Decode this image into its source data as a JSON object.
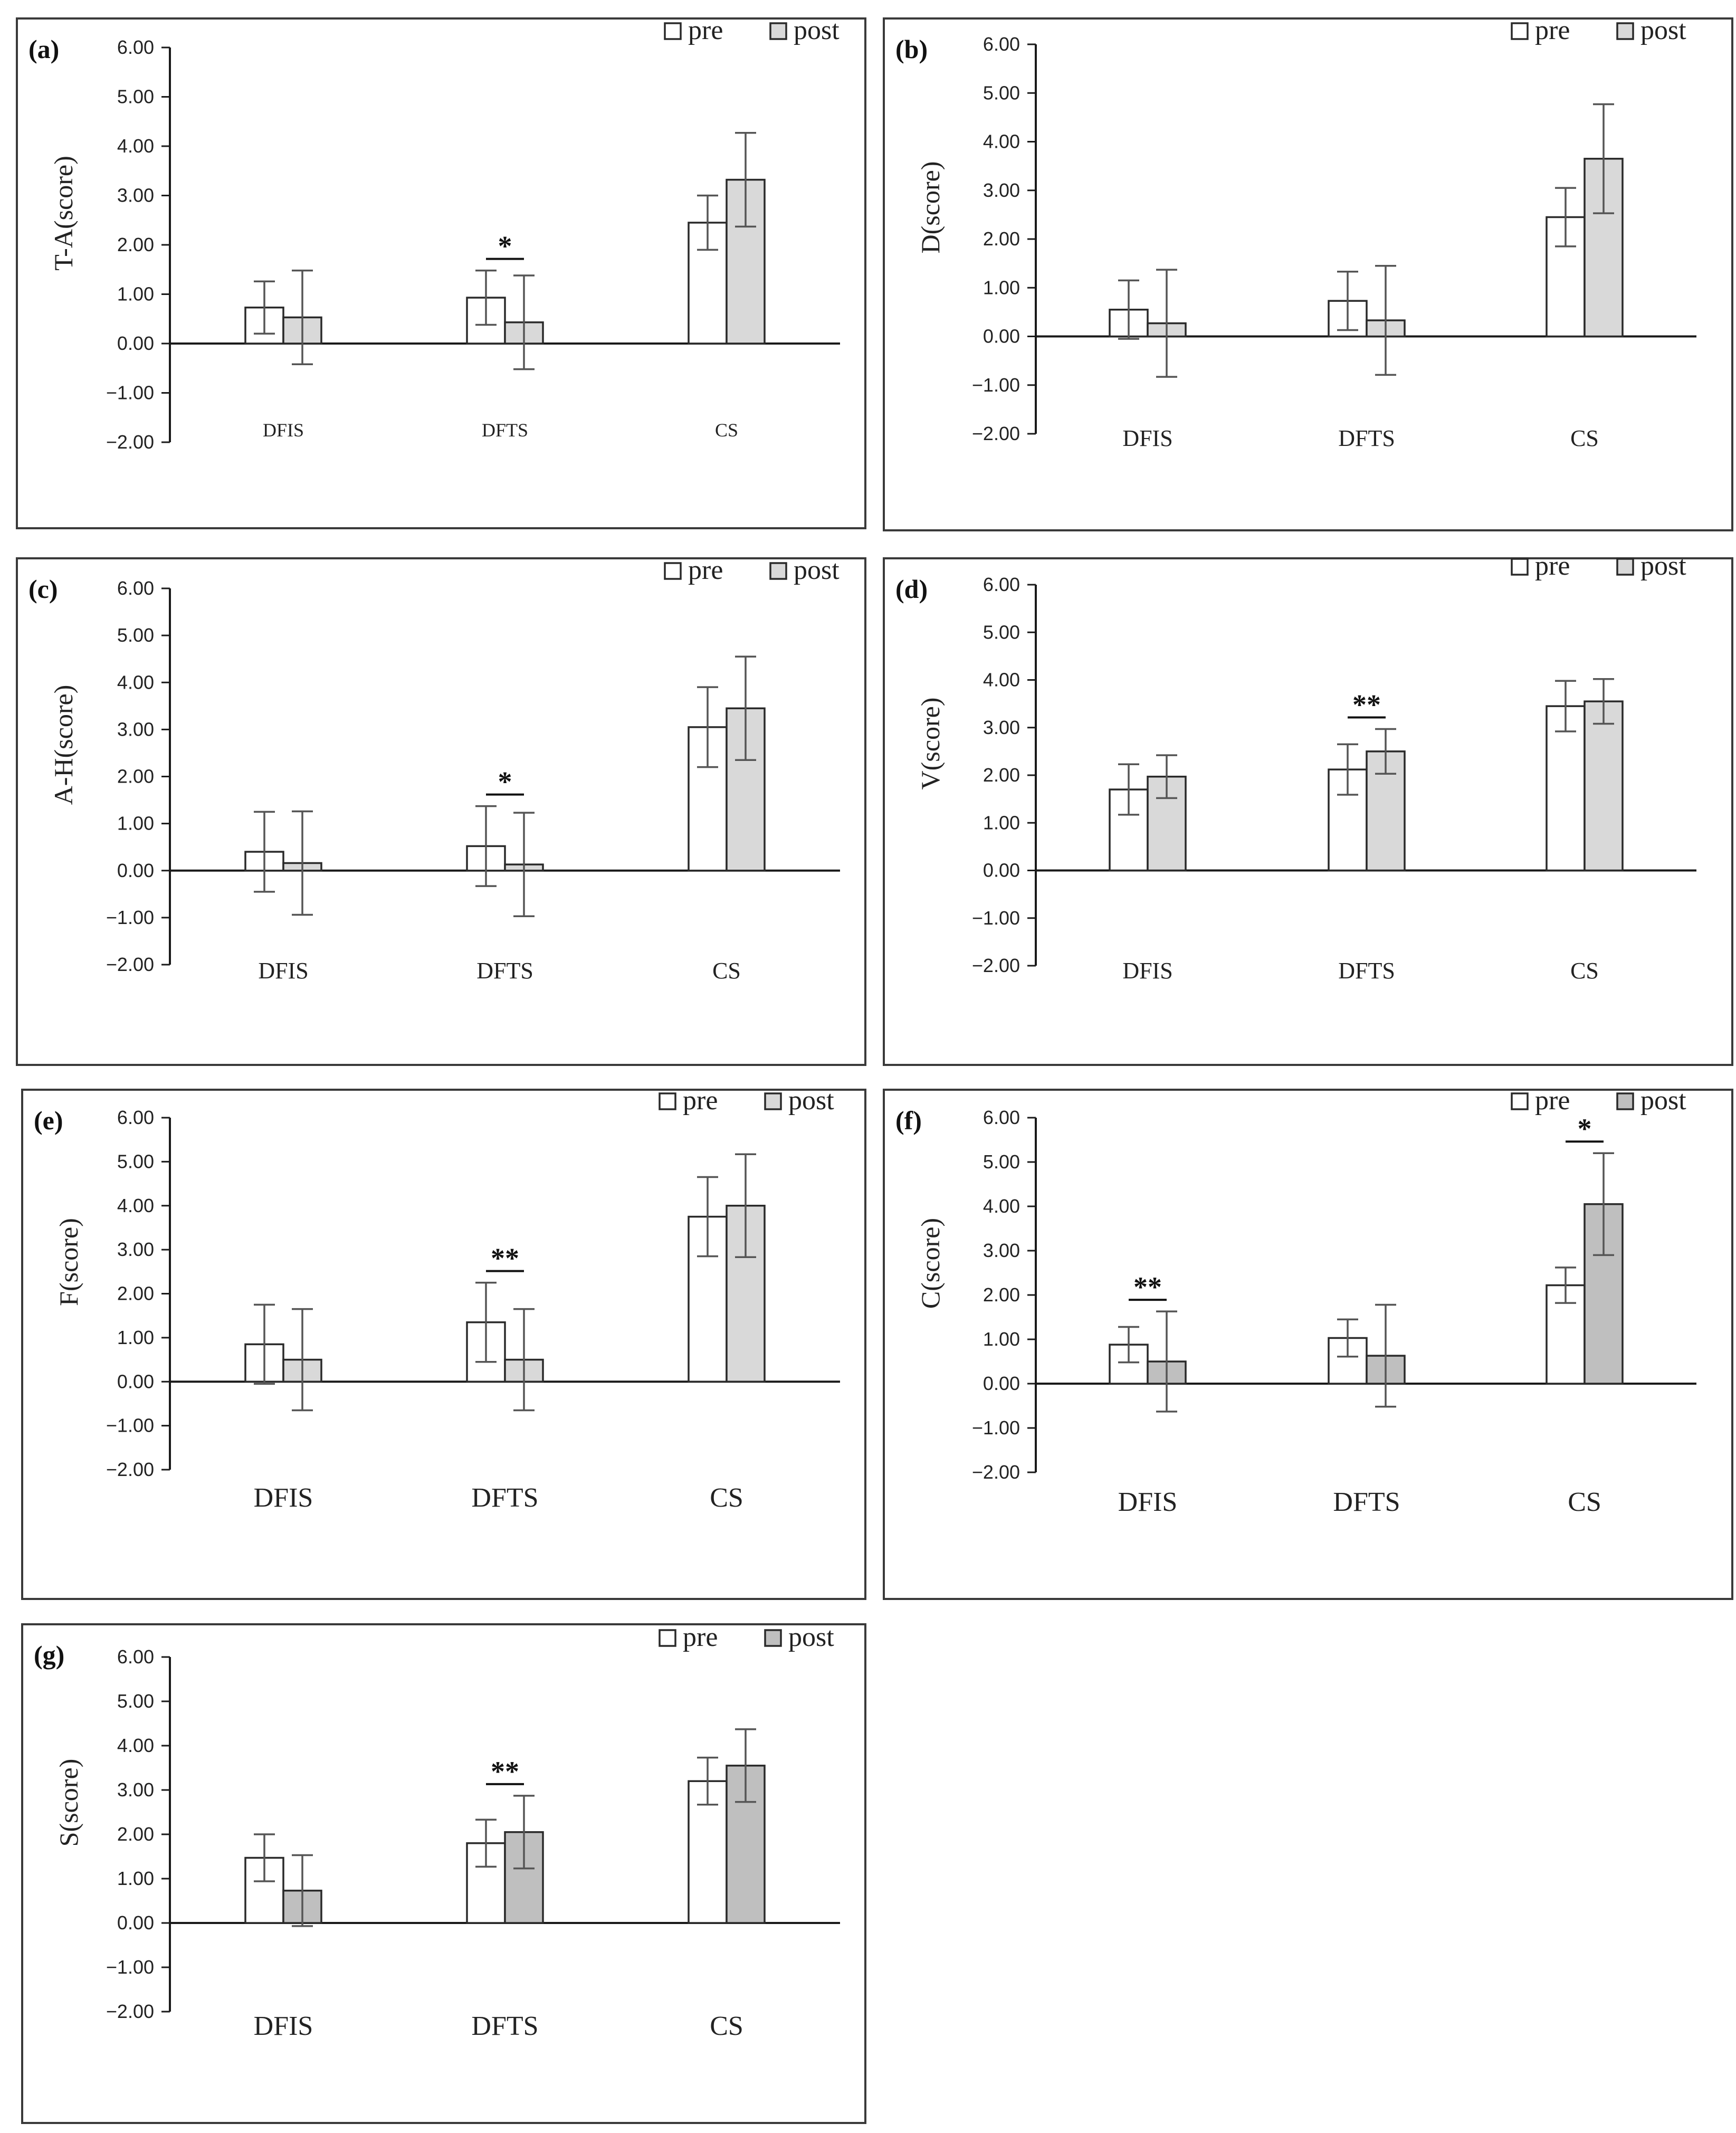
{
  "legend": {
    "pre": "pre",
    "post": "post"
  },
  "colors": {
    "pre": "#ffffff",
    "post_light": "#d9d9d9",
    "post_dark": "#bfbfbf",
    "border": "#2a2a2a"
  },
  "chart_data": [
    {
      "type": "bar",
      "panel": "(a)",
      "ylabel": "T-A(score)",
      "ylim": [
        -2,
        6
      ],
      "yticks": [
        "6.00",
        "5.00",
        "4.00",
        "3.00",
        "2.00",
        "1.00",
        "0.00",
        "−1.00",
        "−2.00"
      ],
      "categories": [
        "DFIS",
        "DFTS",
        "CS"
      ],
      "series": [
        {
          "name": "pre",
          "values": [
            0.73,
            0.93,
            2.45
          ],
          "errors": [
            0.53,
            0.55,
            0.55
          ]
        },
        {
          "name": "post",
          "values": [
            0.53,
            0.43,
            3.32
          ],
          "errors": [
            0.95,
            0.95,
            0.95
          ]
        }
      ],
      "significance": [
        {
          "category": "DFTS",
          "label": "*"
        }
      ],
      "post_shade": "light"
    },
    {
      "type": "bar",
      "panel": "(b)",
      "ylabel": "D(score)",
      "ylim": [
        -2,
        6
      ],
      "yticks": [
        "6.00",
        "5.00",
        "4.00",
        "3.00",
        "2.00",
        "1.00",
        "0.00",
        "−1.00",
        "−2.00"
      ],
      "categories": [
        "DFIS",
        "DFTS",
        "CS"
      ],
      "series": [
        {
          "name": "pre",
          "values": [
            0.55,
            0.73,
            2.45
          ],
          "errors": [
            0.6,
            0.6,
            0.6
          ]
        },
        {
          "name": "post",
          "values": [
            0.27,
            0.33,
            3.65
          ],
          "errors": [
            1.1,
            1.12,
            1.12
          ]
        }
      ],
      "significance": [],
      "post_shade": "light"
    },
    {
      "type": "bar",
      "panel": "(c)",
      "ylabel": "A-H(score)",
      "ylim": [
        -2,
        6
      ],
      "yticks": [
        "6.00",
        "5.00",
        "4.00",
        "3.00",
        "2.00",
        "1.00",
        "0.00",
        "−1.00",
        "−2.00"
      ],
      "categories": [
        "DFIS",
        "DFTS",
        "CS"
      ],
      "series": [
        {
          "name": "pre",
          "values": [
            0.4,
            0.52,
            3.05
          ],
          "errors": [
            0.85,
            0.85,
            0.85
          ]
        },
        {
          "name": "post",
          "values": [
            0.16,
            0.13,
            3.45
          ],
          "errors": [
            1.1,
            1.1,
            1.1
          ]
        }
      ],
      "significance": [
        {
          "category": "DFTS",
          "label": "*"
        }
      ],
      "post_shade": "light"
    },
    {
      "type": "bar",
      "panel": "(d)",
      "ylabel": "V(score)",
      "ylim": [
        -2,
        6
      ],
      "yticks": [
        "6.00",
        "5.00",
        "4.00",
        "3.00",
        "2.00",
        "1.00",
        "0.00",
        "−1.00",
        "−2.00"
      ],
      "categories": [
        "DFIS",
        "DFTS",
        "CS"
      ],
      "series": [
        {
          "name": "pre",
          "values": [
            1.7,
            2.12,
            3.45
          ],
          "errors": [
            0.53,
            0.53,
            0.53
          ]
        },
        {
          "name": "post",
          "values": [
            1.97,
            2.5,
            3.55
          ],
          "errors": [
            0.45,
            0.47,
            0.47
          ]
        }
      ],
      "significance": [
        {
          "category": "DFTS",
          "label": "**"
        }
      ],
      "post_shade": "light"
    },
    {
      "type": "bar",
      "panel": "(e)",
      "ylabel": "F(score)",
      "ylim": [
        -2,
        6
      ],
      "yticks": [
        "6.00",
        "5.00",
        "4.00",
        "3.00",
        "2.00",
        "1.00",
        "0.00",
        "−1.00",
        "−2.00"
      ],
      "categories": [
        "DFIS",
        "DFTS",
        "CS"
      ],
      "series": [
        {
          "name": "pre",
          "values": [
            0.85,
            1.35,
            3.75
          ],
          "errors": [
            0.9,
            0.9,
            0.9
          ]
        },
        {
          "name": "post",
          "values": [
            0.5,
            0.5,
            4.0
          ],
          "errors": [
            1.15,
            1.15,
            1.17
          ]
        }
      ],
      "significance": [
        {
          "category": "DFTS",
          "label": "**"
        }
      ],
      "post_shade": "light"
    },
    {
      "type": "bar",
      "panel": "(f)",
      "ylabel": "C(score)",
      "ylim": [
        -2,
        6
      ],
      "yticks": [
        "6.00",
        "5.00",
        "4.00",
        "3.00",
        "2.00",
        "1.00",
        "0.00",
        "−1.00",
        "−2.00"
      ],
      "categories": [
        "DFIS",
        "DFTS",
        "CS"
      ],
      "series": [
        {
          "name": "pre",
          "values": [
            0.88,
            1.03,
            2.22
          ],
          "errors": [
            0.4,
            0.42,
            0.4
          ]
        },
        {
          "name": "post",
          "values": [
            0.5,
            0.63,
            4.05
          ],
          "errors": [
            1.13,
            1.15,
            1.15
          ]
        }
      ],
      "significance": [
        {
          "category": "DFIS",
          "label": "**"
        },
        {
          "category": "CS",
          "label": "*"
        }
      ],
      "post_shade": "dark"
    },
    {
      "type": "bar",
      "panel": "(g)",
      "ylabel": "S(score)",
      "ylim": [
        -2,
        6
      ],
      "yticks": [
        "6.00",
        "5.00",
        "4.00",
        "3.00",
        "2.00",
        "1.00",
        "0.00",
        "−1.00",
        "−2.00"
      ],
      "categories": [
        "DFIS",
        "DFTS",
        "CS"
      ],
      "series": [
        {
          "name": "pre",
          "values": [
            1.47,
            1.8,
            3.2
          ],
          "errors": [
            0.53,
            0.53,
            0.53
          ]
        },
        {
          "name": "post",
          "values": [
            0.73,
            2.05,
            3.55
          ],
          "errors": [
            0.8,
            0.82,
            0.82
          ]
        }
      ],
      "significance": [
        {
          "category": "DFTS",
          "label": "**"
        }
      ],
      "post_shade": "dark"
    }
  ]
}
